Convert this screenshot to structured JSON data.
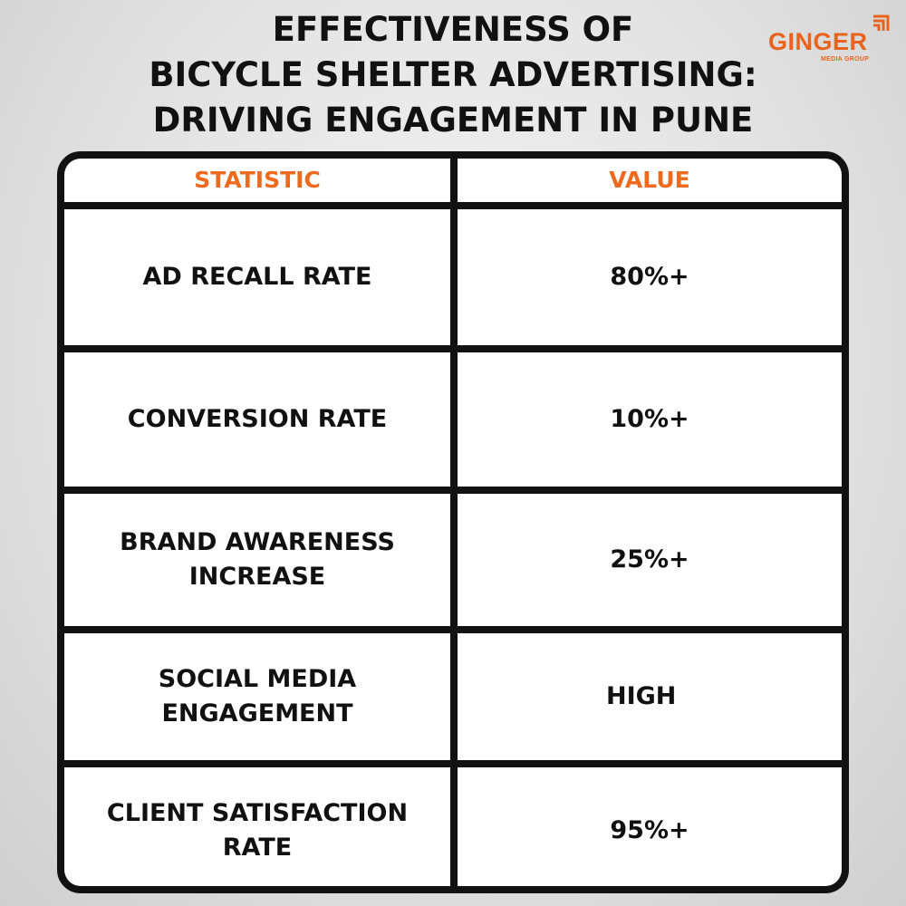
{
  "title": {
    "line1": "EFFECTIVENESS OF",
    "line2": "BICYCLE SHELTER ADVERTISING:",
    "line3": "DRIVING ENGAGEMENT IN PUNE"
  },
  "logo": {
    "name": "GINGER",
    "subtitle": "MEDIA GROUP",
    "brand_color": "#e8641e"
  },
  "table": {
    "headers": {
      "statistic": "STATISTIC",
      "value": "VALUE"
    },
    "header_color": "#ee6a1f",
    "rows": [
      {
        "statistic": "AD RECALL RATE",
        "value": "80%+"
      },
      {
        "statistic": "CONVERSION RATE",
        "value": "10%+"
      },
      {
        "statistic_line1": "BRAND AWARENESS",
        "statistic_line2": "INCREASE",
        "value": "25%+"
      },
      {
        "statistic_line1": "SOCIAL MEDIA",
        "statistic_line2": "ENGAGEMENT",
        "value": "HIGH"
      },
      {
        "statistic_line1": "CLIENT SATISFACTION",
        "statistic_line2": "RATE",
        "value": "95%+"
      }
    ]
  }
}
